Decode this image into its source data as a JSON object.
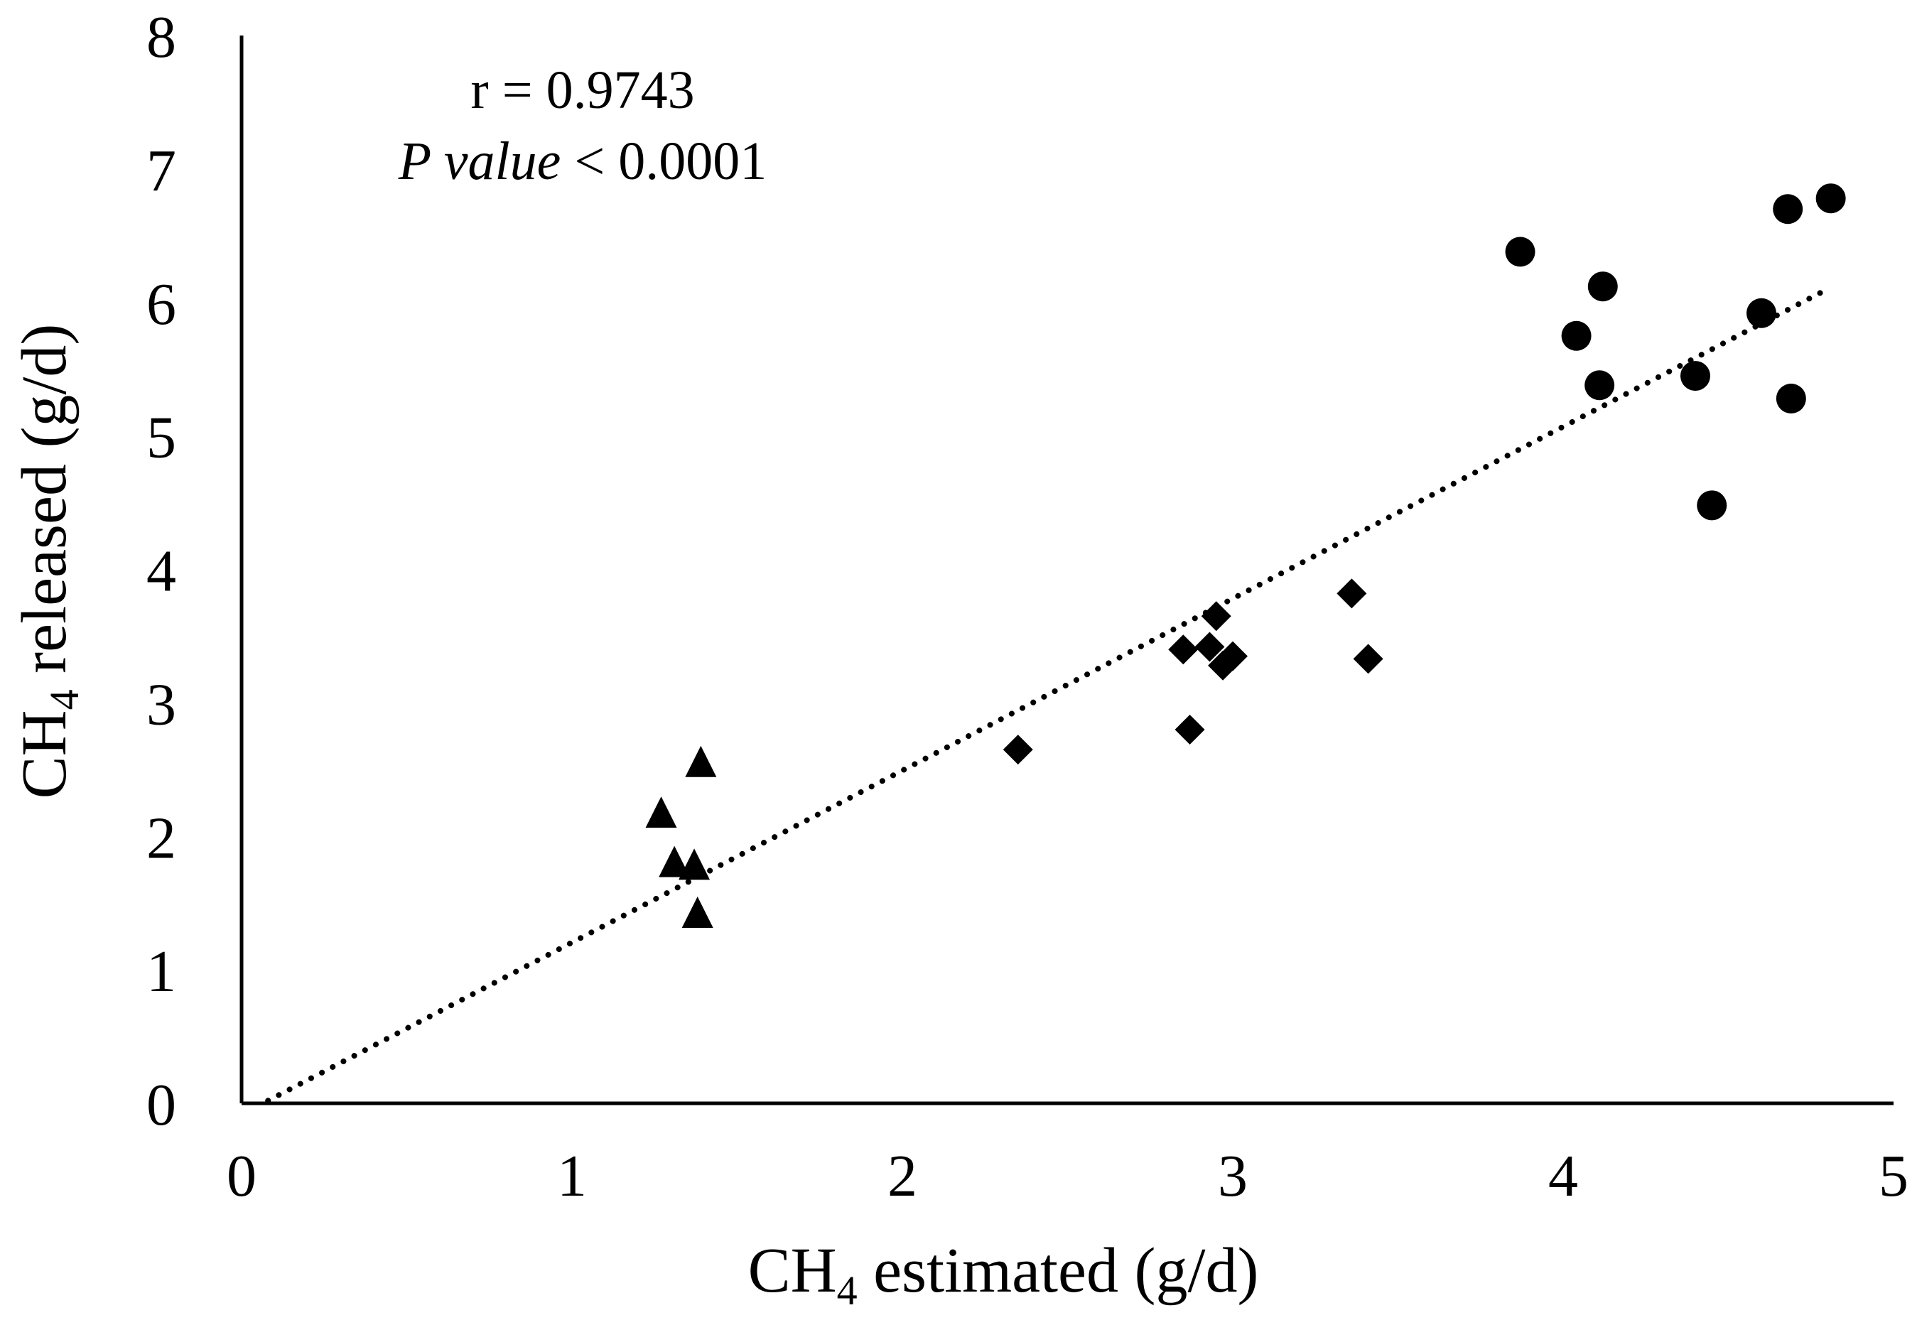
{
  "chart_data": {
    "type": "scatter",
    "title": "",
    "xlabel": {
      "prefix": "CH",
      "subscript": "4",
      "suffix": " estimated (g/d)"
    },
    "ylabel": {
      "prefix": "CH",
      "subscript": "4",
      "suffix": " released (g/d)"
    },
    "xlim": [
      0,
      5
    ],
    "ylim": [
      0,
      8
    ],
    "xticks": [
      "0",
      "1",
      "2",
      "3",
      "4",
      "5"
    ],
    "yticks": [
      "0",
      "1",
      "2",
      "3",
      "4",
      "5",
      "6",
      "7",
      "8"
    ],
    "grid": false,
    "annotations": {
      "r_text": "r = 0.9743",
      "p_label": "P value",
      "p_rest": " < 0.0001"
    },
    "trendline": {
      "style": "dotted",
      "x": [
        0.08,
        4.8
      ],
      "y": [
        0.02,
        6.1
      ]
    },
    "series": [
      {
        "name": "triangles",
        "marker": "triangle",
        "points": [
          [
            1.27,
            2.17
          ],
          [
            1.31,
            1.8
          ],
          [
            1.37,
            1.78
          ],
          [
            1.39,
            2.55
          ],
          [
            1.38,
            1.42
          ]
        ]
      },
      {
        "name": "diamonds",
        "marker": "diamond",
        "points": [
          [
            2.35,
            2.65
          ],
          [
            2.85,
            3.4
          ],
          [
            2.87,
            2.8
          ],
          [
            2.93,
            3.42
          ],
          [
            2.95,
            3.65
          ],
          [
            2.97,
            3.28
          ],
          [
            3.0,
            3.35
          ],
          [
            3.36,
            3.82
          ],
          [
            3.41,
            3.33
          ]
        ]
      },
      {
        "name": "circles",
        "marker": "circle",
        "points": [
          [
            3.87,
            6.38
          ],
          [
            4.04,
            5.75
          ],
          [
            4.11,
            5.38
          ],
          [
            4.12,
            6.12
          ],
          [
            4.4,
            5.45
          ],
          [
            4.45,
            4.48
          ],
          [
            4.6,
            5.92
          ],
          [
            4.68,
            6.7
          ],
          [
            4.69,
            5.28
          ],
          [
            4.81,
            6.78
          ]
        ]
      }
    ]
  }
}
